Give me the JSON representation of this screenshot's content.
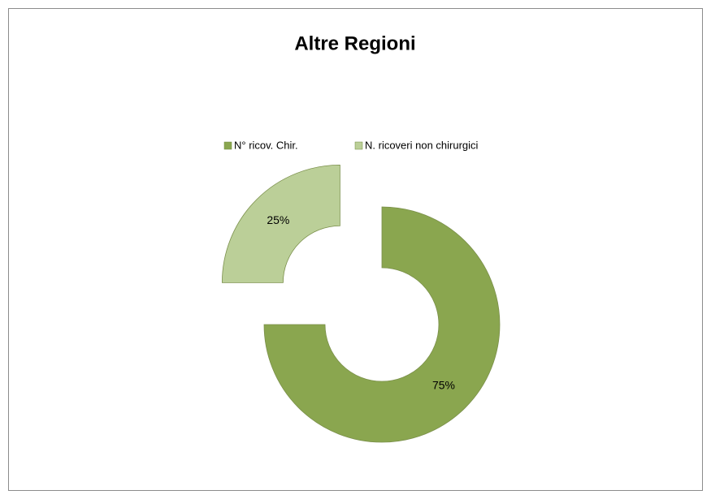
{
  "chart_data": {
    "type": "donut",
    "title": "Altre Regioni",
    "categories": [
      "N° ricov. Chir.",
      "N. ricoveri non chirurgici"
    ],
    "values": [
      75,
      25
    ],
    "value_labels": [
      "75%",
      "25%"
    ],
    "colors": [
      "#8aa64f",
      "#bbcf98"
    ],
    "explode": [
      false,
      true
    ],
    "legend": "top"
  }
}
